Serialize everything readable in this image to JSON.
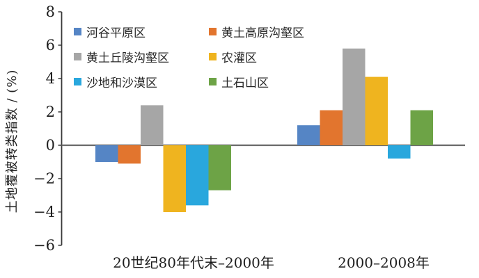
{
  "chart_data": {
    "type": "bar",
    "title": "",
    "ylabel": "土地覆被转类指数 / (%)",
    "xlabel": "",
    "categories": [
      "20世纪80年代末–2000年",
      "2000–2008年"
    ],
    "series": [
      {
        "name": "河谷平原区",
        "color": "#5585C5",
        "values": [
          -1.0,
          1.2
        ]
      },
      {
        "name": "黄土高原沟壑区",
        "color": "#E2752E",
        "values": [
          -1.1,
          2.1
        ]
      },
      {
        "name": "黄土丘陵沟壑区",
        "color": "#A6A6A6",
        "values": [
          2.4,
          5.8
        ]
      },
      {
        "name": "农灌区",
        "color": "#EFB41F",
        "values": [
          -4.0,
          4.1
        ]
      },
      {
        "name": "沙地和沙漠区",
        "color": "#29A7DD",
        "values": [
          -3.6,
          -0.8
        ]
      },
      {
        "name": "土石山区",
        "color": "#6DA346",
        "values": [
          -2.7,
          2.1
        ]
      }
    ],
    "yticks": [
      8,
      6,
      4,
      2,
      0,
      -2,
      -4,
      -6
    ],
    "ylim": [
      -6,
      8
    ],
    "grid": false,
    "legend_position": "top-left, two columns, three rows",
    "colors": {
      "axis": "#3a3a3a",
      "zero_line": "#6a6a6a",
      "text": "#1f1f1f"
    }
  }
}
